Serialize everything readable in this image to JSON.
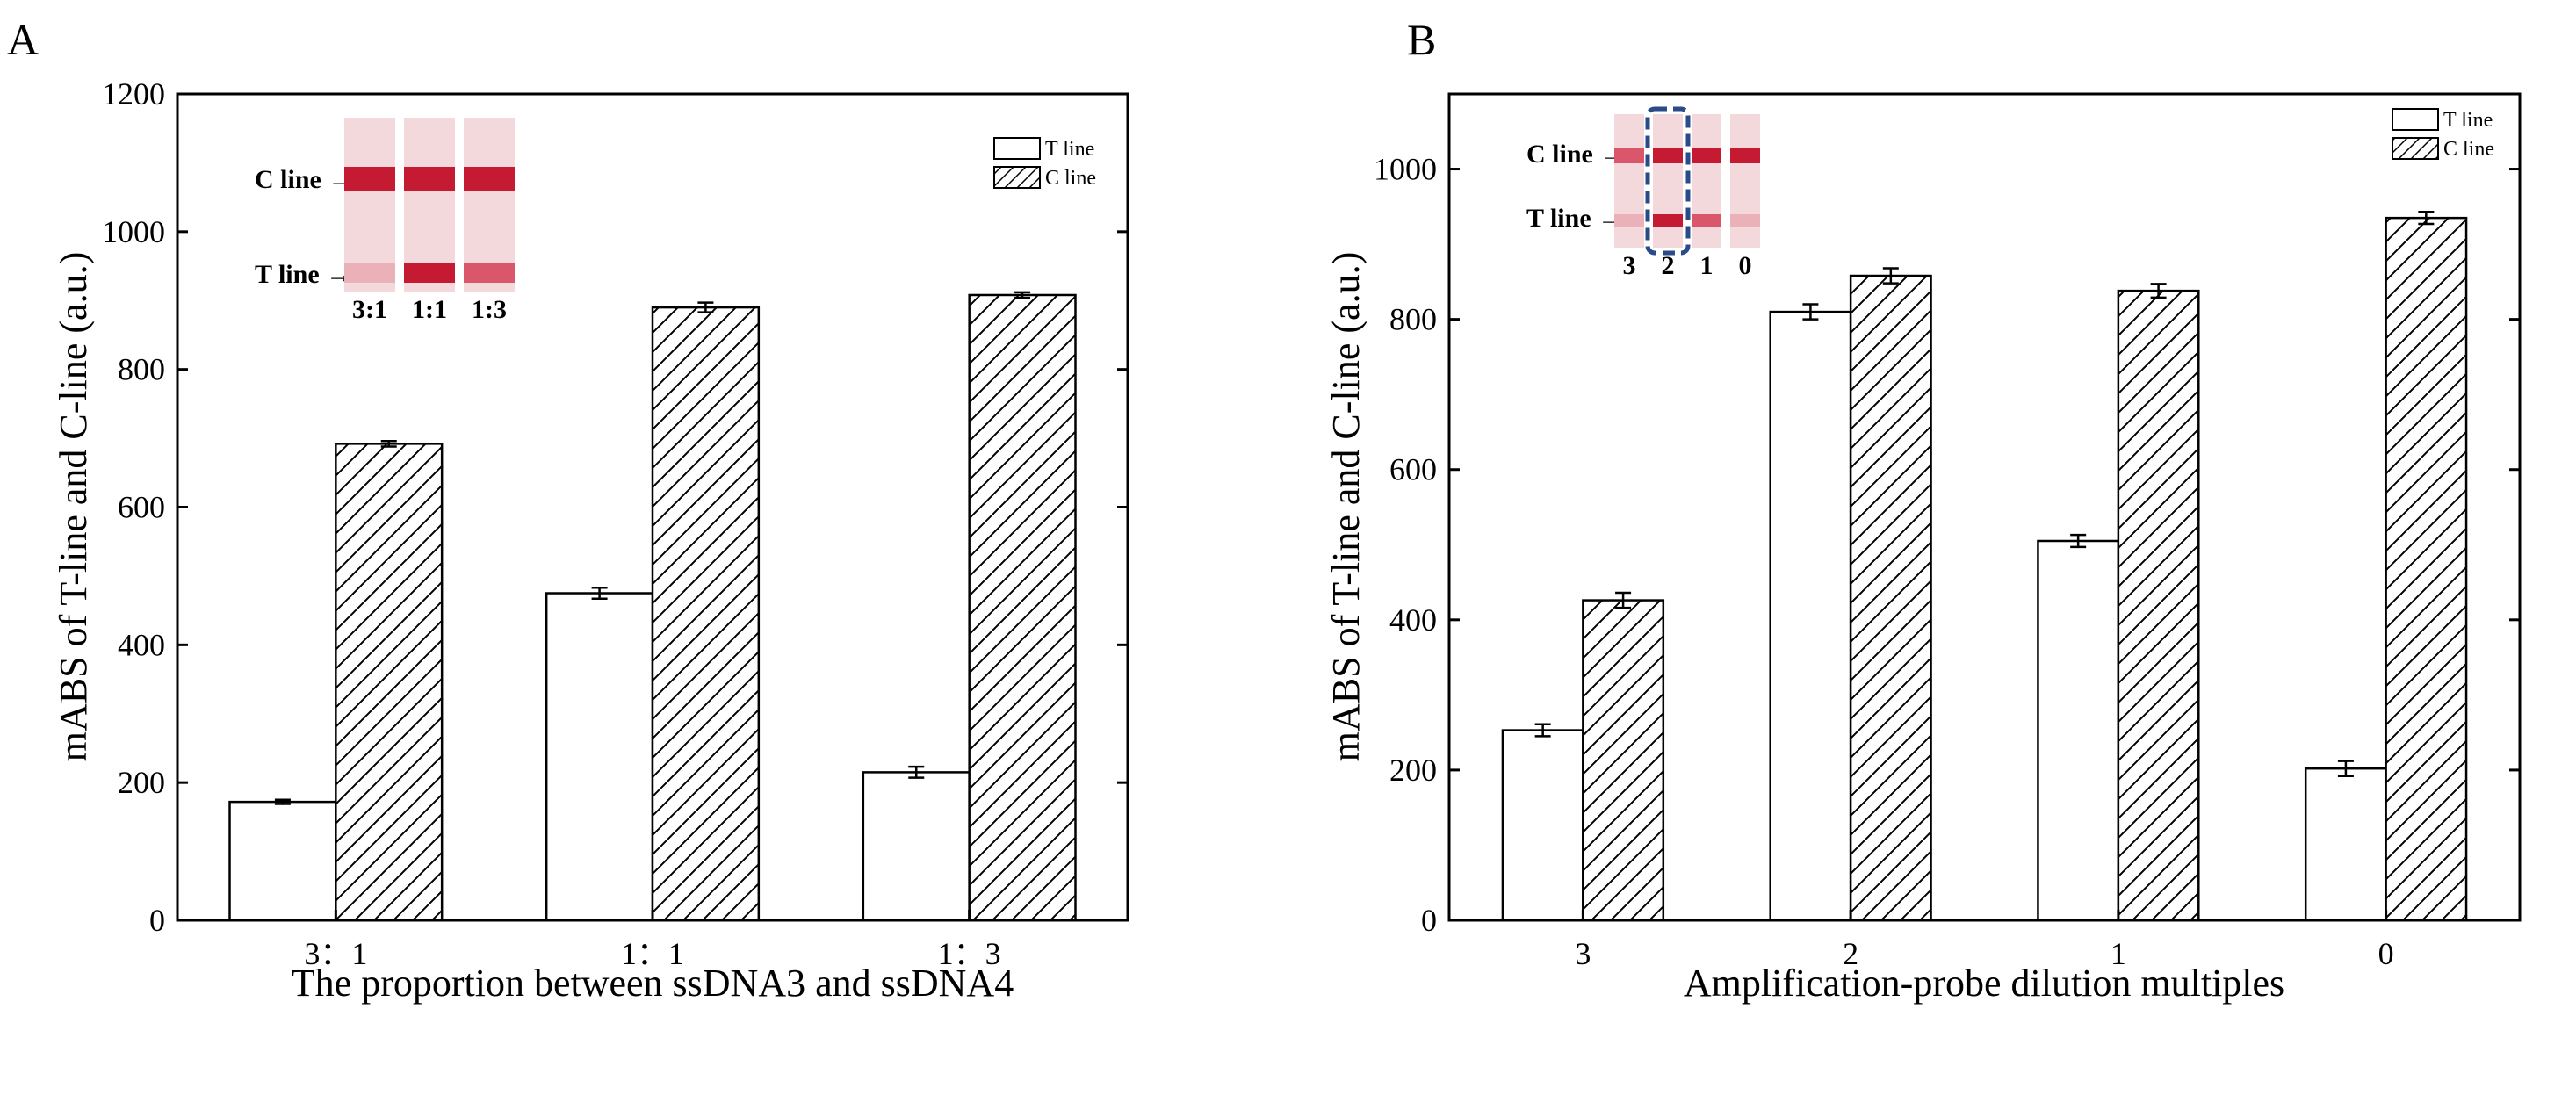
{
  "chart_data": [
    {
      "panel": "A",
      "type": "bar",
      "categories": [
        "3：1",
        "1：1",
        "1：3"
      ],
      "series": [
        {
          "name": "T line",
          "values": [
            172,
            475,
            215
          ],
          "errors": [
            3,
            8,
            8
          ],
          "pattern": "open"
        },
        {
          "name": "C line",
          "values": [
            692,
            890,
            908
          ],
          "errors": [
            4,
            7,
            4
          ],
          "pattern": "hatch"
        }
      ],
      "xlabel": "The proportion between ssDNA3 and ssDNA4",
      "ylabel": "mABS of T-line and C-line (a.u.)",
      "ylim": [
        0,
        1200
      ],
      "yticks": [
        0,
        200,
        400,
        600,
        800,
        1000,
        1200
      ],
      "legend": "top-right",
      "inset": {
        "lane_labels": [
          "3:1",
          "1:1",
          "1:3"
        ],
        "c_label": "C line",
        "t_label": "T line",
        "arrow": "→"
      }
    },
    {
      "panel": "B",
      "type": "bar",
      "categories": [
        "3",
        "2",
        "1",
        "0"
      ],
      "series": [
        {
          "name": "T line",
          "values": [
            253,
            810,
            505,
            202
          ],
          "errors": [
            8,
            10,
            8,
            10
          ],
          "pattern": "open"
        },
        {
          "name": "C line",
          "values": [
            426,
            858,
            838,
            935
          ],
          "errors": [
            10,
            10,
            9,
            8
          ],
          "pattern": "hatch"
        }
      ],
      "xlabel": "Amplification-probe dilution multiples",
      "ylabel": "mABS of T-line and C-line (a.u.)",
      "ylim": [
        0,
        1100
      ],
      "yticks": [
        0,
        200,
        400,
        600,
        800,
        1000
      ],
      "legend": "top-right",
      "inset": {
        "lane_labels": [
          "3",
          "2",
          "1",
          "0"
        ],
        "c_label": "C line",
        "t_label": "T line",
        "arrow": "→",
        "highlighted_lane": "2"
      }
    }
  ],
  "colors": {
    "strip_bg": "#f3d9dc",
    "strip_band_strong": "#c41a32",
    "strip_band_medium": "#d9566b",
    "strip_band_faint": "#eab1b9",
    "highlight_box": "#2a4a8a"
  }
}
